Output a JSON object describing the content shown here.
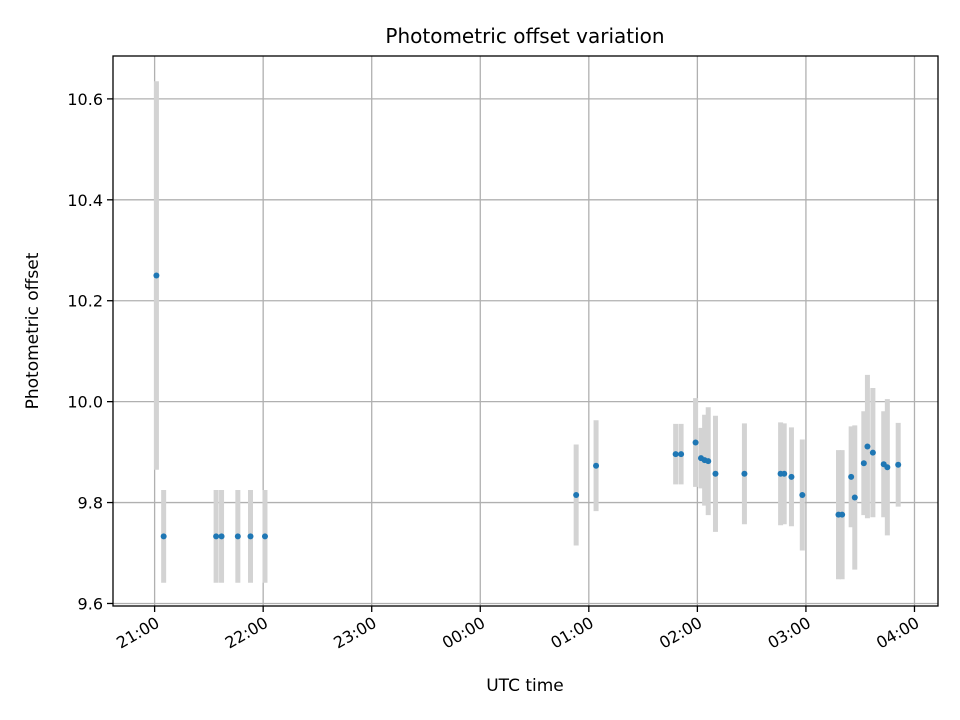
{
  "chart_data": {
    "type": "scatter",
    "title": "Photometric offset variation",
    "xlabel": "UTC time",
    "ylabel": "Photometric offset",
    "grid": true,
    "x_axis_kind": "time",
    "xlim": [
      "2000-01-01T20:37",
      "2000-01-02T04:13"
    ],
    "ylim": [
      9.595,
      10.685
    ],
    "x_ticks": [
      {
        "t": "2000-01-01T21:00",
        "label": "21:00"
      },
      {
        "t": "2000-01-01T22:00",
        "label": "22:00"
      },
      {
        "t": "2000-01-01T23:00",
        "label": "23:00"
      },
      {
        "t": "2000-01-02T00:00",
        "label": "00:00"
      },
      {
        "t": "2000-01-02T01:00",
        "label": "01:00"
      },
      {
        "t": "2000-01-02T02:00",
        "label": "02:00"
      },
      {
        "t": "2000-01-02T03:00",
        "label": "03:00"
      },
      {
        "t": "2000-01-02T04:00",
        "label": "04:00"
      }
    ],
    "y_ticks": [
      {
        "v": 9.6,
        "label": "9.6"
      },
      {
        "v": 9.8,
        "label": "9.8"
      },
      {
        "v": 10.0,
        "label": "10.0"
      },
      {
        "v": 10.2,
        "label": "10.2"
      },
      {
        "v": 10.4,
        "label": "10.4"
      },
      {
        "v": 10.6,
        "label": "10.6"
      }
    ],
    "point_color": "#1f77b4",
    "errorbar_color": "#d3d3d3",
    "points": [
      {
        "t": "2000-01-01T21:01",
        "y": 10.25,
        "err": 0.385
      },
      {
        "t": "2000-01-01T21:05",
        "y": 9.733,
        "err": 0.092
      },
      {
        "t": "2000-01-01T21:34",
        "y": 9.733,
        "err": 0.092
      },
      {
        "t": "2000-01-01T21:37",
        "y": 9.733,
        "err": 0.092
      },
      {
        "t": "2000-01-01T21:46",
        "y": 9.733,
        "err": 0.092
      },
      {
        "t": "2000-01-01T21:53",
        "y": 9.733,
        "err": 0.092
      },
      {
        "t": "2000-01-01T22:01",
        "y": 9.733,
        "err": 0.092
      },
      {
        "t": "2000-01-02T00:53",
        "y": 9.815,
        "err": 0.1
      },
      {
        "t": "2000-01-02T01:04",
        "y": 9.873,
        "err": 0.09
      },
      {
        "t": "2000-01-02T01:48",
        "y": 9.896,
        "err": 0.06
      },
      {
        "t": "2000-01-02T01:51",
        "y": 9.896,
        "err": 0.06
      },
      {
        "t": "2000-01-02T01:59",
        "y": 9.919,
        "err": 0.088
      },
      {
        "t": "2000-01-02T02:02",
        "y": 9.888,
        "err": 0.06
      },
      {
        "t": "2000-01-02T02:04",
        "y": 9.884,
        "err": 0.09
      },
      {
        "t": "2000-01-02T02:06",
        "y": 9.882,
        "err": 0.107
      },
      {
        "t": "2000-01-02T02:10",
        "y": 9.857,
        "err": 0.115
      },
      {
        "t": "2000-01-02T02:26",
        "y": 9.857,
        "err": 0.1
      },
      {
        "t": "2000-01-02T02:46",
        "y": 9.857,
        "err": 0.102
      },
      {
        "t": "2000-01-02T02:48",
        "y": 9.857,
        "err": 0.1
      },
      {
        "t": "2000-01-02T02:52",
        "y": 9.851,
        "err": 0.098
      },
      {
        "t": "2000-01-02T02:58",
        "y": 9.815,
        "err": 0.11
      },
      {
        "t": "2000-01-02T03:18",
        "y": 9.776,
        "err": 0.128
      },
      {
        "t": "2000-01-02T03:20",
        "y": 9.776,
        "err": 0.128
      },
      {
        "t": "2000-01-02T03:25",
        "y": 9.851,
        "err": 0.1
      },
      {
        "t": "2000-01-02T03:27",
        "y": 9.81,
        "err": 0.143
      },
      {
        "t": "2000-01-02T03:32",
        "y": 9.878,
        "err": 0.103
      },
      {
        "t": "2000-01-02T03:34",
        "y": 9.911,
        "err": 0.142
      },
      {
        "t": "2000-01-02T03:37",
        "y": 9.899,
        "err": 0.128
      },
      {
        "t": "2000-01-02T03:43",
        "y": 9.876,
        "err": 0.105
      },
      {
        "t": "2000-01-02T03:45",
        "y": 9.87,
        "err": 0.135
      },
      {
        "t": "2000-01-02T03:51",
        "y": 9.875,
        "err": 0.083
      }
    ]
  }
}
